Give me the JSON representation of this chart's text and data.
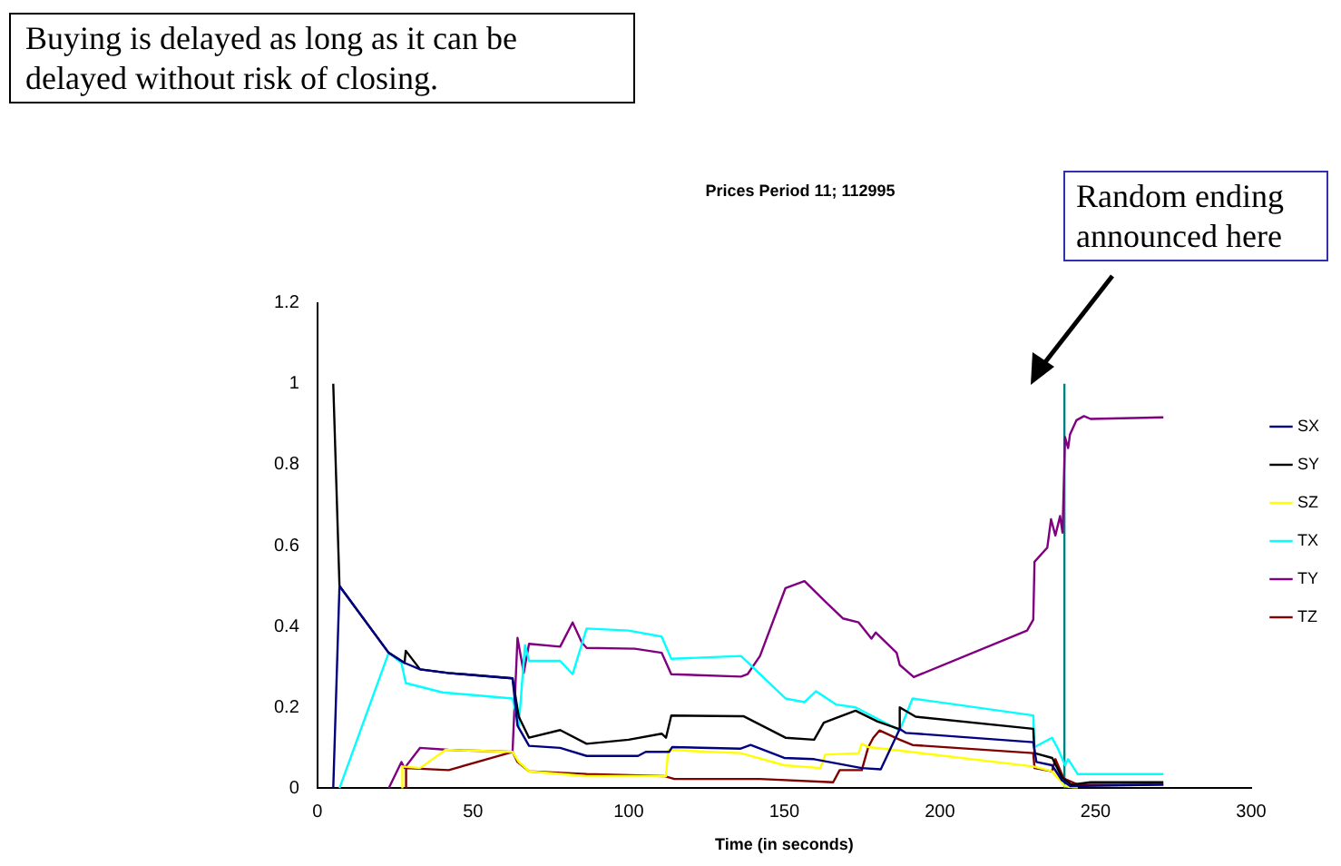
{
  "chart_data": {
    "type": "line",
    "title": "Prices Period 11; 112995",
    "xlabel": "Time (in seconds)",
    "annotations": [
      "Buying is delayed as long as it can be delayed without risk of closing.",
      "Random ending announced here"
    ],
    "xlim": [
      0,
      300
    ],
    "xticks": [
      0,
      50,
      100,
      150,
      200,
      250,
      300
    ],
    "ylim": [
      0,
      1.2
    ],
    "yticks": [
      0,
      0.2,
      0.4,
      0.6,
      0.8,
      1,
      1.2
    ],
    "grid": false,
    "legend": "right",
    "marker": "none",
    "line_style": "solid",
    "series": [
      {
        "name": "SX",
        "color": "#000080",
        "x": [
          5.1,
          7.1,
          22.9,
          28,
          33,
          42,
          62.7,
          64.3,
          68,
          78,
          86.5,
          103,
          105.5,
          113,
          114,
          136,
          139.2,
          150,
          159.6,
          174.9,
          181,
          187.1,
          189,
          230,
          231,
          236,
          239.2,
          242,
          271.8
        ],
        "values": [
          0,
          0.5,
          0.335,
          0.31,
          0.294,
          0.285,
          0.272,
          0.155,
          0.105,
          0.1,
          0.08,
          0.08,
          0.09,
          0.09,
          0.102,
          0.098,
          0.107,
          0.075,
          0.072,
          0.05,
          0.047,
          0.147,
          0.137,
          0.114,
          0.065,
          0.057,
          0.02,
          0.005,
          0.009
        ]
      },
      {
        "name": "SY",
        "color": "#000000",
        "x": [
          5.1,
          7.1,
          22.9,
          28,
          28.4,
          33,
          42,
          62.7,
          64.7,
          68,
          78,
          86.5,
          100,
          110.6,
          112,
          113.7,
          136,
          137,
          150.4,
          159.6,
          162.7,
          166.7,
          172.9,
          180,
          186.7,
          187.1,
          192.2,
          230,
          230.4,
          236.1,
          239.2,
          242.2,
          248.4,
          271.8
        ],
        "values": [
          1,
          0.5,
          0.335,
          0.31,
          0.34,
          0.294,
          0.285,
          0.272,
          0.177,
          0.125,
          0.144,
          0.11,
          0.12,
          0.135,
          0.125,
          0.18,
          0.178,
          0.178,
          0.125,
          0.12,
          0.162,
          0.174,
          0.192,
          0.165,
          0.147,
          0.2,
          0.177,
          0.147,
          0.087,
          0.075,
          0.027,
          0.009,
          0.015,
          0.015
        ]
      },
      {
        "name": "SZ",
        "color": "#ffff00",
        "x": [
          27,
          27.3,
          33,
          41.2,
          62.7,
          64.7,
          68,
          86.5,
          110.6,
          112,
          112.7,
          136,
          150,
          161.6,
          163.1,
          173.9,
          174.9,
          177,
          185.1,
          230,
          236,
          240.2,
          244.3
        ],
        "values": [
          0,
          0.054,
          0.05,
          0.095,
          0.09,
          0.065,
          0.042,
          0.03,
          0.03,
          0.03,
          0.095,
          0.087,
          0.057,
          0.05,
          0.083,
          0.087,
          0.11,
          0.102,
          0.095,
          0.054,
          0.042,
          0.005,
          0
        ]
      },
      {
        "name": "TX",
        "color": "#00ffff",
        "x": [
          7.1,
          22.9,
          27,
          28.4,
          40.2,
          62.7,
          64.7,
          66.7,
          68,
          78,
          82,
          86.5,
          100,
          110.6,
          113.7,
          136.1,
          150.4,
          156.5,
          160.2,
          166.7,
          172.9,
          187.1,
          191.2,
          230,
          230.4,
          236,
          237.8,
          240.2,
          241.2,
          244.3,
          271.8
        ],
        "values": [
          0,
          0.335,
          0.31,
          0.26,
          0.237,
          0.222,
          0.155,
          0.354,
          0.315,
          0.315,
          0.282,
          0.395,
          0.39,
          0.375,
          0.32,
          0.327,
          0.222,
          0.213,
          0.24,
          0.207,
          0.2,
          0.143,
          0.222,
          0.18,
          0.102,
          0.125,
          0.1,
          0.057,
          0.072,
          0.035,
          0.035
        ]
      },
      {
        "name": "TY",
        "color": "#800080",
        "x": [
          22.9,
          27,
          28,
          33,
          42,
          62.7,
          64.3,
          66.3,
          68,
          78,
          82,
          85,
          86.5,
          102,
          110.6,
          113.7,
          136.1,
          138.2,
          142.2,
          150.4,
          156.5,
          162.7,
          168.8,
          173.9,
          178,
          179.4,
          186.1,
          187.1,
          191.6,
          228,
          230,
          230.4,
          234.5,
          235.7,
          237.1,
          238.6,
          239.4,
          240.2,
          241.2,
          241.8,
          243.9,
          246.3,
          248.4,
          271.8
        ],
        "values": [
          0,
          0.065,
          0.05,
          0.1,
          0.095,
          0.09,
          0.372,
          0.285,
          0.357,
          0.35,
          0.41,
          0.36,
          0.347,
          0.345,
          0.335,
          0.282,
          0.276,
          0.282,
          0.327,
          0.495,
          0.512,
          0.465,
          0.42,
          0.41,
          0.37,
          0.385,
          0.335,
          0.305,
          0.275,
          0.39,
          0.417,
          0.56,
          0.595,
          0.665,
          0.625,
          0.673,
          0.632,
          0.868,
          0.841,
          0.875,
          0.91,
          0.92,
          0.913,
          0.917
        ]
      },
      {
        "name": "TZ",
        "color": "#800000",
        "x": [
          28.4,
          28.5,
          42.2,
          62.7,
          64.3,
          68,
          86.5,
          111.6,
          114.7,
          142.2,
          165.7,
          167.8,
          174.9,
          177,
          178.6,
          180.6,
          187.1,
          191.2,
          230,
          230.4,
          236,
          237.1,
          239.8,
          244.3,
          271.8
        ],
        "values": [
          0,
          0.05,
          0.045,
          0.09,
          0.065,
          0.042,
          0.035,
          0.03,
          0.023,
          0.023,
          0.015,
          0.045,
          0.045,
          0.102,
          0.125,
          0.143,
          0.12,
          0.107,
          0.087,
          0.05,
          0.042,
          0.072,
          0.024,
          0.009,
          0.009
        ]
      },
      {
        "color": "#008080",
        "x": [
          240,
          240
        ],
        "values": [
          0,
          1
        ]
      }
    ]
  }
}
